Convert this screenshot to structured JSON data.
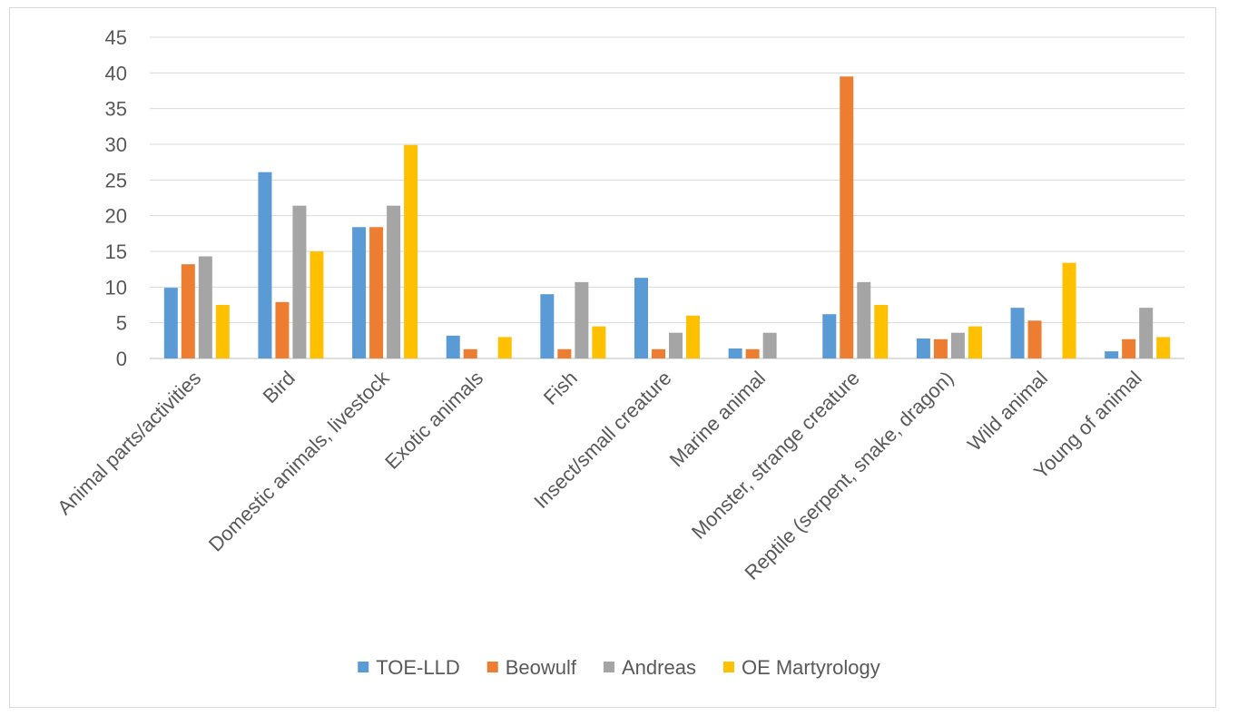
{
  "chart_data": {
    "type": "bar",
    "title": "",
    "xlabel": "",
    "ylabel": "",
    "ylim": [
      0,
      45
    ],
    "yticks": [
      0,
      5,
      10,
      15,
      20,
      25,
      30,
      35,
      40,
      45
    ],
    "grid": true,
    "legend_position": "bottom",
    "categories": [
      "Animal parts/activities",
      "Bird",
      "Domestic animals, livestock",
      "Exotic animals",
      "Fish",
      "Insect/small creature",
      "Marine animal",
      "Monster, strange creature",
      "Reptile (serpent, snake, dragon)",
      "Wild animal",
      "Young of animal"
    ],
    "series": [
      {
        "name": "TOE-LLD",
        "color": "#5b9bd5",
        "values": [
          9.9,
          26.1,
          18.4,
          3.2,
          9.0,
          11.3,
          1.4,
          6.2,
          2.8,
          7.1,
          1.0
        ]
      },
      {
        "name": "Beowulf",
        "color": "#ed7d31",
        "values": [
          13.2,
          7.9,
          18.4,
          1.3,
          1.3,
          1.3,
          1.3,
          39.5,
          2.7,
          5.3,
          2.7
        ]
      },
      {
        "name": "Andreas",
        "color": "#a5a5a5",
        "values": [
          14.3,
          21.4,
          21.4,
          0,
          10.7,
          3.6,
          3.6,
          10.7,
          3.6,
          0,
          7.1
        ]
      },
      {
        "name": "OE Martyrology",
        "color": "#ffc000",
        "values": [
          7.5,
          15.0,
          29.9,
          3.0,
          4.5,
          6.0,
          0,
          7.5,
          4.5,
          13.4,
          3.0
        ]
      }
    ]
  }
}
